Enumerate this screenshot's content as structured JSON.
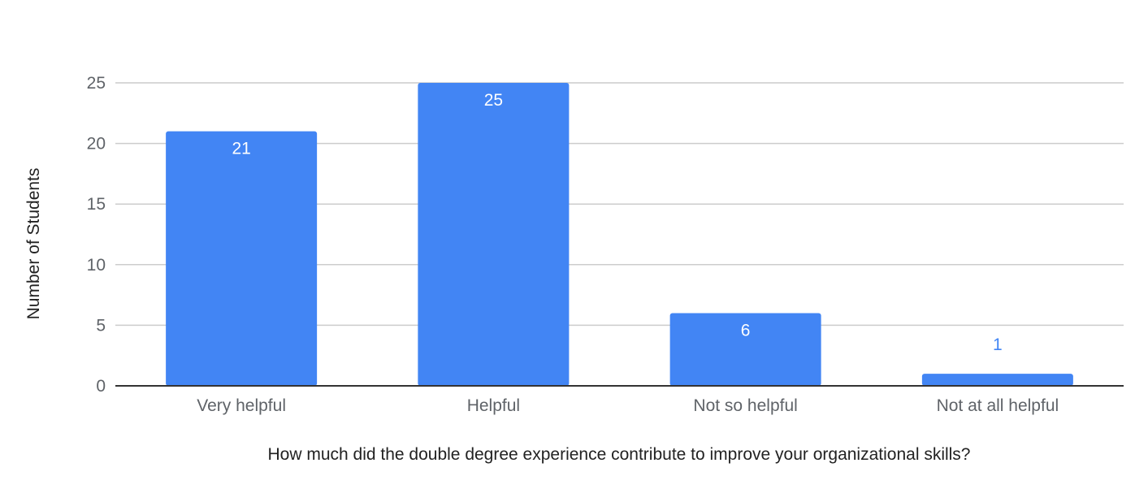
{
  "chart_data": {
    "type": "bar",
    "title": "",
    "xlabel": "How much did the double degree experience contribute to improve your organizational skills?",
    "ylabel": "Number of Students",
    "categories": [
      "Very helpful",
      "Helpful",
      "Not so helpful",
      "Not at all helpful"
    ],
    "values": [
      21,
      25,
      6,
      1
    ],
    "data_labels": [
      "21",
      "25",
      "6",
      "1"
    ],
    "ylim": [
      0,
      25
    ],
    "yticks": [
      0,
      5,
      10,
      15,
      20,
      25
    ],
    "ytick_labels": [
      "0",
      "5",
      "10",
      "15",
      "20",
      "25"
    ],
    "grid": true,
    "legend": "none",
    "colors": {
      "bar": "#4285f4",
      "grid": "#cccccc",
      "baseline": "#333333",
      "label_inside": "#ffffff",
      "label_outside": "#4285f4"
    }
  }
}
